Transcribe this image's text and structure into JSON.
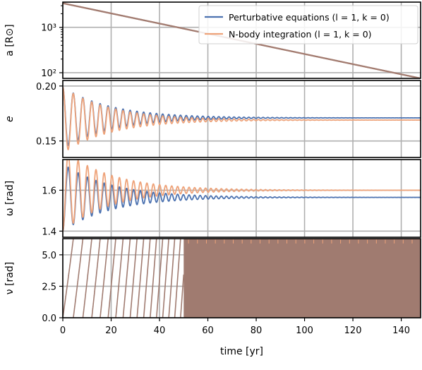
{
  "colors": {
    "perturbative": "#4c72b0",
    "nbody": "#eea37a",
    "nu_fill": "#a07b70",
    "grid": "#b0b0b0",
    "frame": "#000000"
  },
  "chart_data": {
    "type": "line",
    "shared_x": {
      "label": "time [yr]",
      "range": [
        0,
        148
      ],
      "ticks": [
        0,
        20,
        40,
        60,
        80,
        100,
        120,
        140
      ],
      "tick_labels": [
        "0",
        "20",
        "40",
        "60",
        "80",
        "100",
        "120",
        "140"
      ]
    },
    "legend": {
      "placement": "top-right",
      "entries": [
        {
          "series": "perturbative",
          "label": "Perturbative equations (l = 1, k = 0)"
        },
        {
          "series": "nbody",
          "label": "N-body integration (l = 1, k = 0)"
        }
      ]
    },
    "grid": true,
    "panels": [
      {
        "id": "a",
        "ylabel": "a [R⊙]",
        "yscale": "log",
        "ylim": [
          75,
          3600
        ],
        "yticks": [
          100,
          1000
        ],
        "ytick_labels": [
          "10²",
          "10³"
        ],
        "model": {
          "kind": "log-linear",
          "start": [
            0,
            3400
          ],
          "end": [
            148,
            75
          ]
        }
      },
      {
        "id": "e",
        "ylabel": "e",
        "yscale": "linear",
        "ylim": [
          0.135,
          0.205
        ],
        "yticks": [
          0.15,
          0.2
        ],
        "ytick_labels": [
          "0.15",
          "0.20"
        ],
        "model": {
          "kind": "damped-oscillation",
          "start_value": 0.199,
          "first_minimum": 0.143,
          "perturbative_final": 0.171,
          "nbody_final": 0.169,
          "first_period_yr": 4.6,
          "damping_time_yr": 20
        }
      },
      {
        "id": "omega",
        "ylabel": "ω [rad]",
        "yscale": "linear",
        "ylim": [
          1.37,
          1.75
        ],
        "yticks": [
          1.4,
          1.6
        ],
        "ytick_labels": [
          "1.4",
          "1.6"
        ],
        "model": {
          "kind": "damped-oscillation",
          "start_value": 1.4,
          "first_maximum": 1.72,
          "perturbative_final": 1.565,
          "nbody_final": 1.6,
          "first_period_yr": 4.6,
          "damping_time_yr": 20
        }
      },
      {
        "id": "nu",
        "ylabel": "ν [rad]",
        "yscale": "linear",
        "ylim": [
          0,
          6.2832
        ],
        "yticks": [
          0.0,
          2.5,
          5.0
        ],
        "ytick_labels": [
          "0.0",
          "2.5",
          "5.0"
        ],
        "model": {
          "kind": "sawtooth-wrap",
          "wrap": 6.2832,
          "first_period_yr": 4.6,
          "dense_after_yr": 50
        }
      }
    ]
  }
}
